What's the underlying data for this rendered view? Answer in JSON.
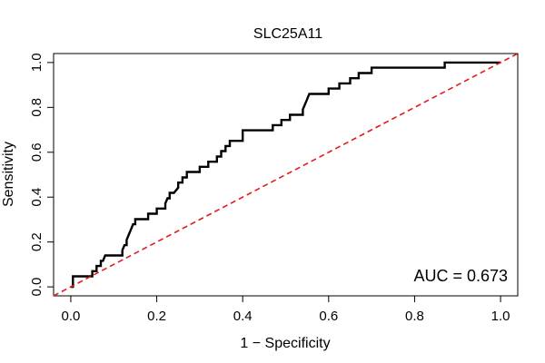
{
  "chart_data": {
    "type": "line",
    "title": "SLC25A11",
    "xlabel": "1 − Specificity",
    "ylabel": "Sensitivity",
    "xlim": [
      -0.04,
      1.04
    ],
    "ylim": [
      -0.04,
      1.04
    ],
    "x_ticks": [
      0.0,
      0.2,
      0.4,
      0.6,
      0.8,
      1.0
    ],
    "y_ticks": [
      0.0,
      0.2,
      0.4,
      0.6,
      0.8,
      1.0
    ],
    "x_tick_labels": [
      "0.0",
      "0.2",
      "0.4",
      "0.6",
      "0.8",
      "1.0"
    ],
    "y_tick_labels": [
      "0.0",
      "0.2",
      "0.4",
      "0.6",
      "0.8",
      "1.0"
    ],
    "grid": false,
    "annotation": "AUC = 0.673",
    "annotation_position": "bottom-right",
    "series": [
      {
        "style": "solid",
        "color": "#000000",
        "x": [
          0.0,
          0.005,
          0.005,
          0.05,
          0.05,
          0.055,
          0.06,
          0.06,
          0.07,
          0.07,
          0.075,
          0.08,
          0.12,
          0.12,
          0.125,
          0.13,
          0.13,
          0.135,
          0.14,
          0.145,
          0.15,
          0.15,
          0.18,
          0.18,
          0.2,
          0.2,
          0.22,
          0.22,
          0.225,
          0.23,
          0.23,
          0.24,
          0.25,
          0.25,
          0.26,
          0.26,
          0.27,
          0.27,
          0.28,
          0.28,
          0.3,
          0.3,
          0.32,
          0.32,
          0.34,
          0.34,
          0.35,
          0.35,
          0.36,
          0.36,
          0.37,
          0.37,
          0.38,
          0.38,
          0.4,
          0.4,
          0.47,
          0.47,
          0.49,
          0.49,
          0.51,
          0.51,
          0.54,
          0.54,
          0.545,
          0.55,
          0.555,
          0.56,
          0.56,
          0.6,
          0.6,
          0.625,
          0.625,
          0.65,
          0.65,
          0.67,
          0.67,
          0.7,
          0.7,
          0.71,
          0.71,
          0.87,
          0.87,
          1.0
        ],
        "y": [
          0.0,
          0.0,
          0.047,
          0.047,
          0.07,
          0.07,
          0.07,
          0.093,
          0.093,
          0.116,
          0.116,
          0.14,
          0.14,
          0.163,
          0.186,
          0.186,
          0.209,
          0.233,
          0.256,
          0.279,
          0.279,
          0.302,
          0.302,
          0.326,
          0.326,
          0.349,
          0.349,
          0.372,
          0.395,
          0.395,
          0.419,
          0.419,
          0.442,
          0.465,
          0.465,
          0.488,
          0.488,
          0.512,
          0.512,
          0.512,
          0.512,
          0.535,
          0.535,
          0.558,
          0.558,
          0.581,
          0.581,
          0.605,
          0.605,
          0.628,
          0.628,
          0.651,
          0.651,
          0.651,
          0.651,
          0.698,
          0.698,
          0.721,
          0.721,
          0.744,
          0.744,
          0.767,
          0.767,
          0.791,
          0.814,
          0.837,
          0.86,
          0.86,
          0.86,
          0.86,
          0.884,
          0.884,
          0.907,
          0.907,
          0.93,
          0.93,
          0.953,
          0.953,
          0.977,
          0.977,
          0.977,
          0.977,
          1.0,
          1.0
        ]
      },
      {
        "style": "dashed",
        "color": "#e31a1c",
        "x": [
          -0.04,
          1.04
        ],
        "y": [
          -0.04,
          1.04
        ]
      }
    ]
  }
}
